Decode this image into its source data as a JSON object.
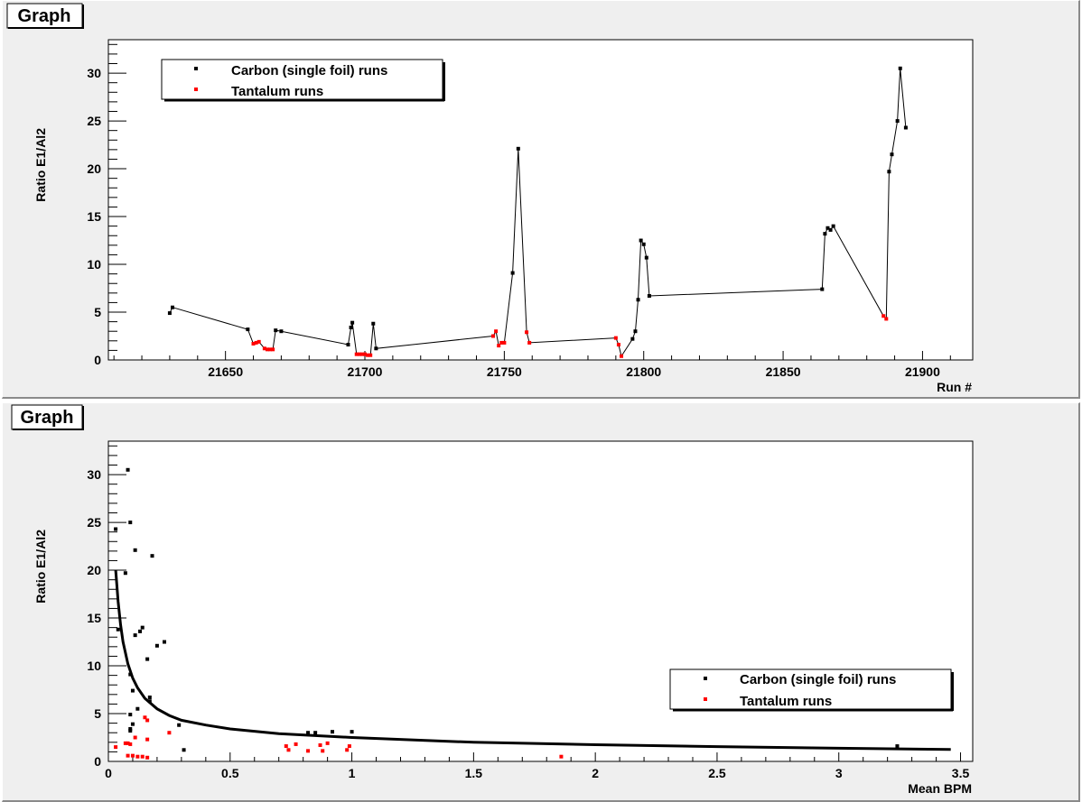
{
  "chart_data": [
    {
      "type": "line",
      "title": "Graph",
      "xlabel": "Run #",
      "ylabel": "Ratio E1/Al2",
      "xlim": [
        21608,
        21918
      ],
      "ylim": [
        0,
        33.5
      ],
      "xticks": [
        21650,
        21700,
        21750,
        21800,
        21850,
        21900
      ],
      "yticks": [
        0,
        5,
        10,
        15,
        20,
        25,
        30
      ],
      "grid": false,
      "legend": "top-left",
      "line_points": [
        [
          21630,
          4.9
        ],
        [
          21631,
          5.5
        ],
        [
          21658,
          3.2
        ],
        [
          21660,
          1.7
        ],
        [
          21661,
          1.8
        ],
        [
          21662,
          1.9
        ],
        [
          21664,
          1.2
        ],
        [
          21665,
          1.1
        ],
        [
          21666,
          1.1
        ],
        [
          21667,
          1.1
        ],
        [
          21668,
          3.1
        ],
        [
          21670,
          3.0
        ],
        [
          21694,
          1.6
        ],
        [
          21695,
          3.4
        ],
        [
          21695.5,
          3.9
        ],
        [
          21697,
          0.6
        ],
        [
          21698,
          0.6
        ],
        [
          21699,
          0.6
        ],
        [
          21700,
          0.6
        ],
        [
          21701,
          0.5
        ],
        [
          21702,
          0.5
        ],
        [
          21703,
          3.8
        ],
        [
          21704,
          1.2
        ],
        [
          21746,
          2.5
        ],
        [
          21747,
          3.0
        ],
        [
          21748,
          1.5
        ],
        [
          21749,
          1.8
        ],
        [
          21750,
          1.8
        ],
        [
          21753,
          9.1
        ],
        [
          21755,
          22.1
        ],
        [
          21758,
          2.9
        ],
        [
          21759,
          1.8
        ],
        [
          21790,
          2.3
        ],
        [
          21791,
          1.6
        ],
        [
          21792,
          0.4
        ],
        [
          21796,
          2.2
        ],
        [
          21797,
          3.0
        ],
        [
          21798,
          6.3
        ],
        [
          21799,
          12.5
        ],
        [
          21800,
          12.1
        ],
        [
          21801,
          10.7
        ],
        [
          21802,
          6.7
        ],
        [
          21864,
          7.4
        ],
        [
          21865,
          13.2
        ],
        [
          21866,
          13.8
        ],
        [
          21867,
          13.6
        ],
        [
          21868,
          14.0
        ],
        [
          21886,
          4.6
        ],
        [
          21887,
          4.3
        ],
        [
          21888,
          19.7
        ],
        [
          21889,
          21.5
        ],
        [
          21891,
          25.0
        ],
        [
          21892,
          30.5
        ],
        [
          21894,
          24.3
        ]
      ],
      "series": [
        {
          "name": "Carbon (single foil) runs",
          "color": "#000000",
          "points": [
            [
              21630,
              4.9
            ],
            [
              21631,
              5.5
            ],
            [
              21658,
              3.2
            ],
            [
              21668,
              3.1
            ],
            [
              21670,
              3.0
            ],
            [
              21694,
              1.6
            ],
            [
              21695,
              3.4
            ],
            [
              21695.5,
              3.9
            ],
            [
              21703,
              3.8
            ],
            [
              21704,
              1.2
            ],
            [
              21753,
              9.1
            ],
            [
              21755,
              22.1
            ],
            [
              21796,
              2.2
            ],
            [
              21797,
              3.0
            ],
            [
              21798,
              6.3
            ],
            [
              21799,
              12.5
            ],
            [
              21800,
              12.1
            ],
            [
              21801,
              10.7
            ],
            [
              21802,
              6.7
            ],
            [
              21864,
              7.4
            ],
            [
              21865,
              13.2
            ],
            [
              21866,
              13.8
            ],
            [
              21867,
              13.6
            ],
            [
              21868,
              14.0
            ],
            [
              21888,
              19.7
            ],
            [
              21889,
              21.5
            ],
            [
              21891,
              25.0
            ],
            [
              21892,
              30.5
            ],
            [
              21894,
              24.3
            ]
          ]
        },
        {
          "name": "Tantalum runs",
          "color": "#ff0000",
          "points": [
            [
              21660,
              1.7
            ],
            [
              21661,
              1.8
            ],
            [
              21662,
              1.9
            ],
            [
              21664,
              1.2
            ],
            [
              21665,
              1.1
            ],
            [
              21666,
              1.1
            ],
            [
              21667,
              1.1
            ],
            [
              21697,
              0.6
            ],
            [
              21698,
              0.6
            ],
            [
              21699,
              0.6
            ],
            [
              21700,
              0.6
            ],
            [
              21701,
              0.5
            ],
            [
              21702,
              0.5
            ],
            [
              21746,
              2.5
            ],
            [
              21747,
              3.0
            ],
            [
              21748,
              1.5
            ],
            [
              21749,
              1.8
            ],
            [
              21750,
              1.8
            ],
            [
              21758,
              2.9
            ],
            [
              21759,
              1.8
            ],
            [
              21790,
              2.3
            ],
            [
              21791,
              1.6
            ],
            [
              21792,
              0.4
            ],
            [
              21886,
              4.6
            ],
            [
              21887,
              4.3
            ]
          ]
        }
      ]
    },
    {
      "type": "scatter",
      "title": "Graph",
      "xlabel": "Mean BPM",
      "ylabel": "Ratio E1/Al2",
      "xlim": [
        0,
        3.55
      ],
      "ylim": [
        0,
        33.5
      ],
      "xticks": [
        0,
        0.5,
        1,
        1.5,
        2,
        2.5,
        3,
        3.5
      ],
      "yticks": [
        0,
        5,
        10,
        15,
        20,
        25,
        30
      ],
      "grid": false,
      "legend": "bottom-right",
      "fit_curve": {
        "color": "#000000",
        "points": [
          [
            0.03,
            20.0
          ],
          [
            0.04,
            16.7
          ],
          [
            0.05,
            14.3
          ],
          [
            0.06,
            12.5
          ],
          [
            0.08,
            10.2
          ],
          [
            0.1,
            8.7
          ],
          [
            0.12,
            7.7
          ],
          [
            0.15,
            6.6
          ],
          [
            0.2,
            5.5
          ],
          [
            0.25,
            4.8
          ],
          [
            0.3,
            4.3
          ],
          [
            0.4,
            3.8
          ],
          [
            0.5,
            3.4
          ],
          [
            0.7,
            2.9
          ],
          [
            1.0,
            2.5
          ],
          [
            1.5,
            2.0
          ],
          [
            2.0,
            1.75
          ],
          [
            2.5,
            1.55
          ],
          [
            3.0,
            1.38
          ],
          [
            3.46,
            1.25
          ]
        ]
      },
      "series": [
        {
          "name": "Carbon (single foil) runs",
          "color": "#000000",
          "points": [
            [
              0.03,
              24.3
            ],
            [
              0.07,
              19.7
            ],
            [
              0.08,
              30.5
            ],
            [
              0.09,
              25.0
            ],
            [
              0.11,
              22.1
            ],
            [
              0.18,
              21.5
            ],
            [
              0.04,
              13.8
            ],
            [
              0.11,
              13.2
            ],
            [
              0.13,
              13.6
            ],
            [
              0.14,
              14.0
            ],
            [
              0.23,
              12.5
            ],
            [
              0.2,
              12.1
            ],
            [
              0.16,
              10.7
            ],
            [
              0.09,
              9.1
            ],
            [
              0.1,
              7.4
            ],
            [
              0.17,
              6.7
            ],
            [
              0.17,
              6.3
            ],
            [
              0.12,
              5.5
            ],
            [
              0.09,
              4.9
            ],
            [
              0.1,
              3.9
            ],
            [
              0.09,
              3.4
            ],
            [
              0.09,
              3.2
            ],
            [
              0.29,
              3.8
            ],
            [
              0.31,
              1.2
            ],
            [
              0.82,
              3.0
            ],
            [
              0.85,
              3.0
            ],
            [
              0.92,
              3.1
            ],
            [
              1.0,
              3.1
            ],
            [
              3.24,
              1.6
            ]
          ]
        },
        {
          "name": "Tantalum runs",
          "color": "#ff0000",
          "points": [
            [
              0.03,
              1.5
            ],
            [
              0.07,
              1.9
            ],
            [
              0.08,
              1.9
            ],
            [
              0.09,
              1.8
            ],
            [
              0.1,
              0.6
            ],
            [
              0.11,
              2.5
            ],
            [
              0.08,
              0.6
            ],
            [
              0.12,
              0.5
            ],
            [
              0.14,
              0.5
            ],
            [
              0.15,
              4.6
            ],
            [
              0.16,
              4.3
            ],
            [
              0.16,
              2.3
            ],
            [
              0.16,
              0.4
            ],
            [
              0.25,
              3.0
            ],
            [
              0.73,
              1.6
            ],
            [
              0.74,
              1.2
            ],
            [
              0.77,
              1.8
            ],
            [
              0.82,
              1.1
            ],
            [
              0.87,
              1.7
            ],
            [
              0.88,
              1.1
            ],
            [
              0.9,
              1.9
            ],
            [
              0.98,
              1.2
            ],
            [
              0.99,
              1.6
            ],
            [
              1.86,
              0.5
            ]
          ]
        }
      ]
    }
  ]
}
